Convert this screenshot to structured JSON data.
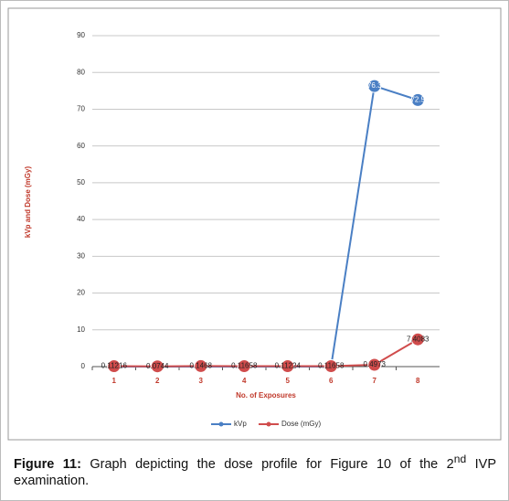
{
  "chart_data": {
    "type": "line",
    "y_axis_label": "kVp and Dose (mGy)",
    "x_axis_label": "No. of Exposures",
    "categories": [
      "1",
      "2",
      "3",
      "4",
      "5",
      "6",
      "7",
      "8"
    ],
    "ylim": [
      0,
      90
    ],
    "yticks": [
      0,
      10,
      20,
      30,
      40,
      50,
      60,
      70,
      80,
      90
    ],
    "grid": true,
    "legend_position": "bottom",
    "series": [
      {
        "name": "kVp",
        "color": "#4a7fc4",
        "values": [
          0,
          0,
          0,
          0,
          0,
          0,
          76.3,
          72.5
        ],
        "value_labels": [
          null,
          null,
          null,
          null,
          null,
          null,
          "76.3",
          "72.5"
        ]
      },
      {
        "name": "Dose (mGy)",
        "color": "#d04c4c",
        "values": [
          0.11216,
          0.0744,
          0.1468,
          0.11658,
          0.11224,
          0.11658,
          0.4973,
          7.4083
        ],
        "value_labels": [
          "0.11216",
          "0.0744",
          "0.1468",
          "0.11658",
          "0.11224",
          "0.11658",
          "0.4973",
          "7.4083"
        ]
      }
    ]
  },
  "caption": {
    "label": "Figure 11:",
    "text": "Graph depicting the dose profile for Figure 10 of the 2",
    "superscript": "nd",
    "text_end": " IVP examination."
  }
}
